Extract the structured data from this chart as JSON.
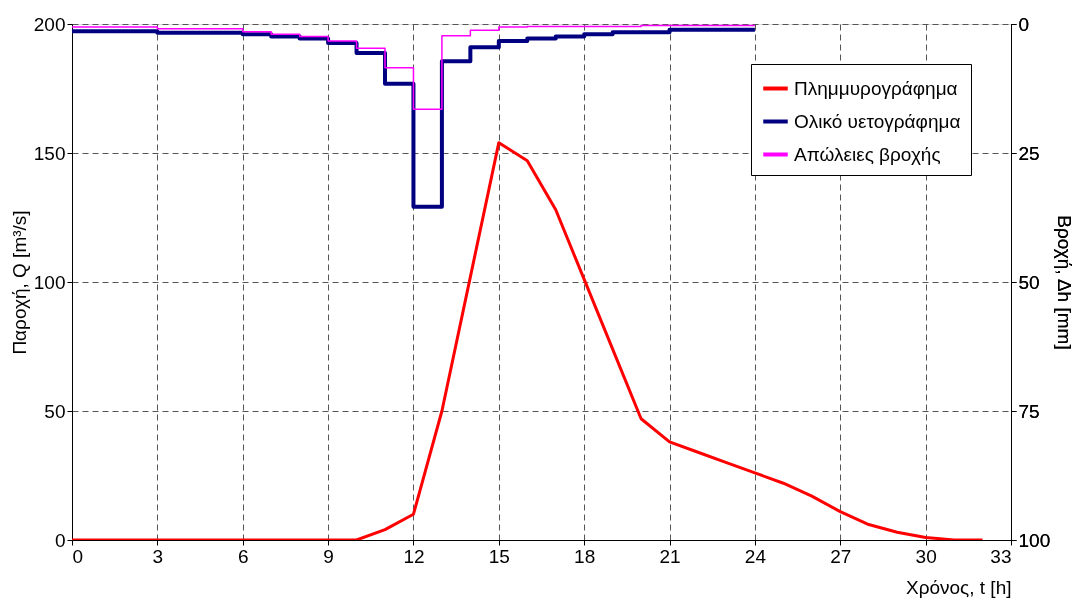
{
  "chart_data": {
    "type": "line",
    "xlabel": "Χρόνος, t [h]",
    "ylabel": "Παροχή, Q [m³/s]",
    "y2label": "Βροχή, Δh [mm]",
    "xlim": [
      0,
      33
    ],
    "xticks": [
      0,
      3,
      6,
      9,
      12,
      15,
      18,
      21,
      24,
      27,
      30,
      33
    ],
    "ylim": [
      0,
      200
    ],
    "yticks": [
      0,
      50,
      100,
      150,
      200
    ],
    "y2lim": [
      100,
      0
    ],
    "y2ticks": [
      0,
      25,
      50,
      75,
      100
    ],
    "grid": true,
    "legend": "top right",
    "line_style": "solid",
    "marker": "none",
    "series": [
      {
        "name": "Πλημμυρογράφημα",
        "color": "#ff0000",
        "x": [
          0,
          1,
          2,
          3,
          4,
          5,
          6,
          7,
          8,
          9,
          10,
          11,
          12,
          13,
          14,
          15,
          16,
          17,
          18,
          19,
          20,
          21,
          22,
          23,
          24,
          25,
          26,
          27,
          28,
          29,
          30,
          31,
          32
        ],
        "values": [
          0,
          0,
          0,
          0,
          0,
          0,
          0,
          0,
          0,
          0,
          0,
          4,
          10,
          50,
          102,
          154,
          147,
          128,
          101,
          74,
          47,
          38,
          34,
          30,
          26,
          22,
          17,
          11,
          6,
          3,
          1,
          0,
          0
        ]
      },
      {
        "name": "Ολικό υετογράφημα",
        "color": "#000080",
        "type": "step",
        "axis": "y2",
        "x": [
          0,
          1,
          2,
          3,
          4,
          5,
          6,
          7,
          8,
          9,
          10,
          11,
          12,
          13,
          14,
          15,
          16,
          17,
          18,
          19,
          20,
          21,
          22,
          23,
          24
        ],
        "values": [
          1.4,
          1.4,
          1.4,
          1.7,
          1.7,
          1.7,
          2.0,
          2.4,
          2.8,
          3.7,
          5.6,
          11.6,
          35.4,
          7.2,
          4.5,
          3.3,
          2.8,
          2.4,
          2.0,
          1.6,
          1.6,
          1.1,
          1.1,
          1.1,
          1.1
        ]
      },
      {
        "name": "Απώλειες βροχής",
        "color": "#ff00ff",
        "type": "step",
        "axis": "y2",
        "x": [
          0,
          1,
          2,
          3,
          4,
          5,
          6,
          7,
          8,
          9,
          10,
          11,
          12,
          13,
          14,
          15,
          16,
          17,
          18,
          19,
          20,
          21,
          22,
          23,
          24
        ],
        "values": [
          0.6,
          0.6,
          0.6,
          0.9,
          0.9,
          0.9,
          1.5,
          2.0,
          2.4,
          3.3,
          4.7,
          8.5,
          16.5,
          2.3,
          1.2,
          0.6,
          0.5,
          0.5,
          0.5,
          0.5,
          0.3,
          0.3,
          0.3,
          0.3,
          0.3
        ]
      }
    ]
  }
}
